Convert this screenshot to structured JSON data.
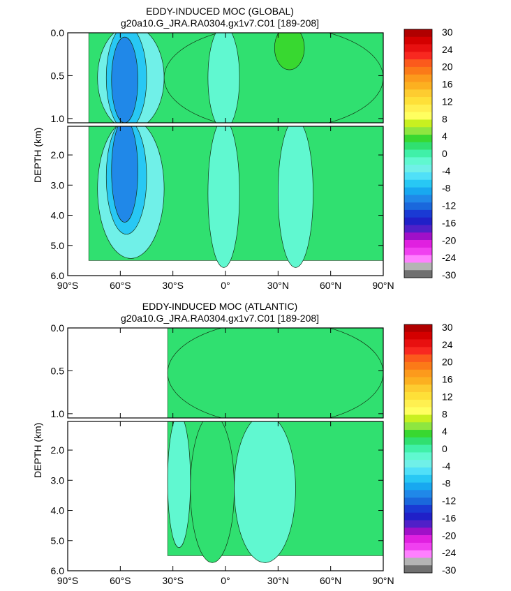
{
  "chart_data": [
    {
      "type": "heatmap",
      "title": "EDDY-INDUCED MOC (GLOBAL)",
      "subtitle": "g20a10.G_JRA.RA0304.gx1v7.C01 [189-208]",
      "ylabel": "DEPTH (km)",
      "xlabel": "",
      "x_ticks": [
        "90°S",
        "60°S",
        "30°S",
        "0°",
        "30°N",
        "60°N",
        "90°N"
      ],
      "x_tick_values": [
        -90,
        -60,
        -30,
        0,
        30,
        60,
        90
      ],
      "xlim": [
        -90,
        90
      ],
      "upper_panel": {
        "ylim": [
          0.0,
          1.05
        ],
        "y_ticks": [
          "0.0",
          "0.5",
          "1.0"
        ],
        "y_tick_values": [
          0.0,
          0.5,
          1.0
        ]
      },
      "lower_panel": {
        "ylim": [
          1.05,
          6.0
        ],
        "y_ticks": [
          "2.0",
          "3.0",
          "4.0",
          "5.0",
          "6.0"
        ],
        "y_tick_values": [
          2.0,
          3.0,
          4.0,
          5.0,
          6.0
        ]
      },
      "basin_extent": {
        "lat_south": -78,
        "lat_north": 90,
        "max_depth_km": 5.5
      },
      "features": [
        {
          "lat_min": -65,
          "lat_max": -50,
          "depth_min": 0.05,
          "depth_max": 4.0,
          "value": -12
        },
        {
          "lat_min": -68,
          "lat_max": -45,
          "depth_min": 0.0,
          "depth_max": 4.4,
          "value": -8
        },
        {
          "lat_min": -73,
          "lat_max": -35,
          "depth_min": 0.0,
          "depth_max": 5.2,
          "value": -4
        },
        {
          "lat_min": -10,
          "lat_max": 8,
          "depth_min": 0.0,
          "depth_max": 5.5,
          "value": -2
        },
        {
          "lat_min": 30,
          "lat_max": 50,
          "depth_min": 1.05,
          "depth_max": 5.5,
          "value": -2
        },
        {
          "lat_min": 28,
          "lat_max": 45,
          "depth_min": 0.0,
          "depth_max": 0.35,
          "value": 4
        },
        {
          "lat_min": -35,
          "lat_max": 90,
          "depth_min": 0.0,
          "depth_max": 1.05,
          "value": 1
        }
      ],
      "colorbar": {
        "labels": [
          "30",
          "24",
          "20",
          "16",
          "12",
          "8",
          "4",
          "0",
          "-4",
          "-8",
          "-12",
          "-16",
          "-20",
          "-24",
          "-30"
        ],
        "colors": [
          "#b00000",
          "#d40000",
          "#e81010",
          "#f82820",
          "#fb5a1c",
          "#fb7a18",
          "#fc9a1c",
          "#fcb020",
          "#fdcc30",
          "#fee038",
          "#fff050",
          "#ffff60",
          "#c8f020",
          "#8ee640",
          "#38d830",
          "#30e070",
          "#40f0a8",
          "#60f8d0",
          "#70f0e8",
          "#50e0f8",
          "#28c8f4",
          "#18a8f0",
          "#2088e8",
          "#1a68dc",
          "#1a3ad4",
          "#2020c8",
          "#5020c8",
          "#a010c8",
          "#e020e0",
          "#f040f0",
          "#ff80ff",
          "#b4b4b4",
          "#707070"
        ]
      }
    },
    {
      "type": "heatmap",
      "title": "EDDY-INDUCED MOC (ATLANTIC)",
      "subtitle": "g20a10.G_JRA.RA0304.gx1v7.C01 [189-208]",
      "ylabel": "DEPTH (km)",
      "xlabel": "",
      "x_ticks": [
        "90°S",
        "60°S",
        "30°S",
        "0°",
        "30°N",
        "60°N",
        "90°N"
      ],
      "x_tick_values": [
        -90,
        -60,
        -30,
        0,
        30,
        60,
        90
      ],
      "xlim": [
        -90,
        90
      ],
      "upper_panel": {
        "ylim": [
          0.0,
          1.05
        ],
        "y_ticks": [
          "0.0",
          "0.5",
          "1.0"
        ],
        "y_tick_values": [
          0.0,
          0.5,
          1.0
        ]
      },
      "lower_panel": {
        "ylim": [
          1.05,
          6.0
        ],
        "y_ticks": [
          "2.0",
          "3.0",
          "4.0",
          "5.0",
          "6.0"
        ],
        "y_tick_values": [
          2.0,
          3.0,
          4.0,
          5.0,
          6.0
        ]
      },
      "basin_extent": {
        "lat_south": -33,
        "lat_north": 90,
        "max_depth_km": 5.5
      },
      "features": [
        {
          "lat_min": -33,
          "lat_max": 90,
          "depth_min": 0.0,
          "depth_max": 1.05,
          "value": 1
        },
        {
          "lat_min": -33,
          "lat_max": -20,
          "depth_min": 1.05,
          "depth_max": 5.0,
          "value": -2
        },
        {
          "lat_min": 5,
          "lat_max": 40,
          "depth_min": 1.05,
          "depth_max": 5.5,
          "value": -2
        },
        {
          "lat_min": -20,
          "lat_max": 5,
          "depth_min": 1.05,
          "depth_max": 5.5,
          "value": 1
        }
      ],
      "colorbar": {
        "labels": [
          "30",
          "24",
          "20",
          "16",
          "12",
          "8",
          "4",
          "0",
          "-4",
          "-8",
          "-12",
          "-16",
          "-20",
          "-24",
          "-30"
        ],
        "colors": [
          "#b00000",
          "#d40000",
          "#e81010",
          "#f82820",
          "#fb5a1c",
          "#fb7a18",
          "#fc9a1c",
          "#fcb020",
          "#fdcc30",
          "#fee038",
          "#fff050",
          "#ffff60",
          "#c8f020",
          "#8ee640",
          "#38d830",
          "#30e070",
          "#40f0a8",
          "#60f8d0",
          "#70f0e8",
          "#50e0f8",
          "#28c8f4",
          "#18a8f0",
          "#2088e8",
          "#1a68dc",
          "#1a3ad4",
          "#2020c8",
          "#5020c8",
          "#a010c8",
          "#e020e0",
          "#f040f0",
          "#ff80ff",
          "#b4b4b4",
          "#707070"
        ]
      }
    }
  ]
}
